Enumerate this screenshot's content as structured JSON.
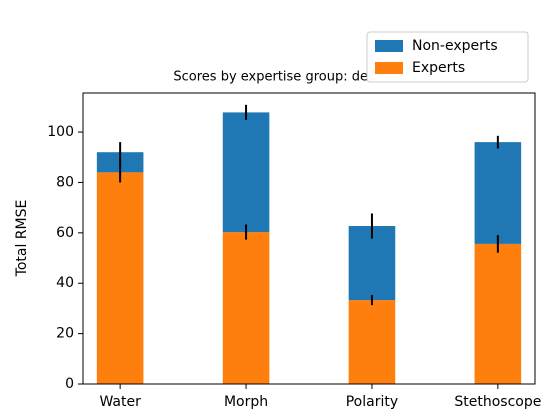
{
  "chart_data": {
    "type": "stacked_bar",
    "title": "Scores by expertise group: detection task",
    "y_label": "Total RMSE",
    "categories": [
      "Water",
      "Morph",
      "Polarity",
      "Stethoscope"
    ],
    "series": [
      {
        "name": "Non-experts",
        "color": "#1f77b4",
        "values": [
          8,
          47.5,
          29.4,
          40.4
        ],
        "errors": [
          4,
          3,
          5,
          2.5
        ]
      },
      {
        "name": "Experts",
        "color": "#ff7f0e",
        "values": [
          84,
          60.3,
          33.3,
          55.6
        ],
        "errors": [
          4,
          3,
          2,
          3.5
        ]
      }
    ],
    "ylim": [
      0,
      115.5
    ],
    "yticks": [
      0,
      20,
      40,
      60,
      80,
      100
    ],
    "legend": "upper right"
  }
}
